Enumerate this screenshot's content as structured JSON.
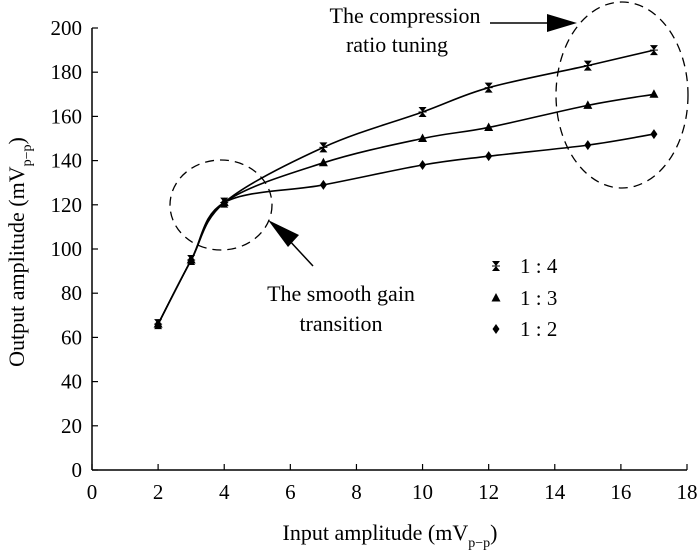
{
  "chart_data": {
    "type": "line",
    "title": "",
    "xlabel": {
      "main": "Input amplitude (mV",
      "sub": "p−p",
      "close": ")"
    },
    "ylabel": {
      "main": "Output amplitude (mV",
      "sub": "p−p",
      "close": ")"
    },
    "xlim": [
      0,
      18
    ],
    "ylim": [
      0,
      200
    ],
    "xticks": [
      0,
      2,
      4,
      6,
      8,
      10,
      12,
      14,
      16,
      18
    ],
    "yticks": [
      0,
      20,
      40,
      60,
      80,
      100,
      120,
      140,
      160,
      180,
      200
    ],
    "grid": false,
    "legend_position": "right-middle",
    "series": [
      {
        "name": "1 : 4",
        "marker": "star-cross",
        "color": "#000000",
        "x": [
          2,
          3,
          4,
          7,
          10,
          12,
          15,
          17
        ],
        "y": [
          66,
          95,
          121,
          146,
          162,
          173,
          183,
          190
        ]
      },
      {
        "name": "1 : 3",
        "marker": "triangle",
        "color": "#000000",
        "x": [
          2,
          3,
          4,
          7,
          10,
          12,
          15,
          17
        ],
        "y": [
          66,
          95,
          121,
          139,
          150,
          155,
          165,
          170
        ]
      },
      {
        "name": "1 : 2",
        "marker": "diamond",
        "color": "#000000",
        "x": [
          2,
          3,
          4,
          7,
          10,
          12,
          15,
          17
        ],
        "y": [
          66,
          95,
          121,
          129,
          138,
          142,
          147,
          152
        ]
      }
    ],
    "annotations": [
      {
        "lines": [
          "The compression",
          "ratio tuning"
        ]
      },
      {
        "lines": [
          "The smooth gain",
          "transition"
        ]
      }
    ]
  }
}
